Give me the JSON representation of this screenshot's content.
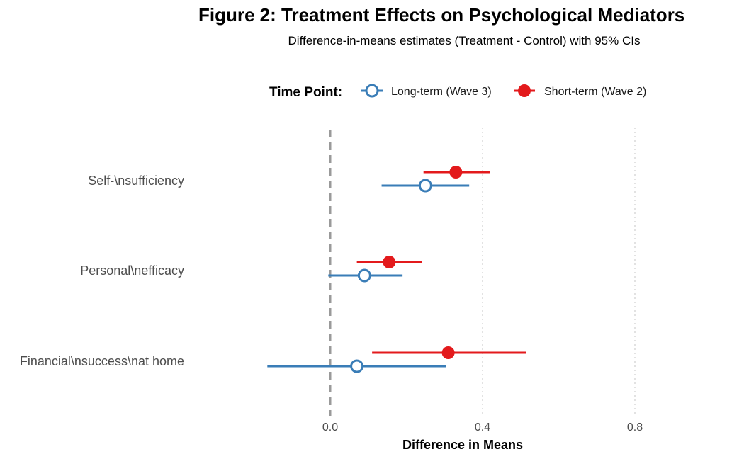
{
  "title": "Figure 2: Treatment Effects on Psychological Mediators",
  "subtitle": "Difference-in-means estimates (Treatment - Control) with 95% CIs",
  "legend": {
    "title": "Time Point:",
    "entries": [
      {
        "name": "Long-term (Wave 3)",
        "color": "#3A7DB7",
        "marker": "open-circle"
      },
      {
        "name": "Short-term (Wave 2)",
        "color": "#E31A1C",
        "marker": "filled-circle"
      }
    ]
  },
  "chart_data": {
    "type": "scatter",
    "orientation": "horizontal-forest",
    "title": "Figure 2: Treatment Effects on Psychological Mediators",
    "subtitle": "Difference-in-means estimates (Treatment - Control) with 95% CIs",
    "xlabel": "Difference in Means",
    "ylabel": "",
    "xlim": [
      -0.17,
      0.86
    ],
    "xticks": [
      0.0,
      0.4,
      0.8
    ],
    "xtick_labels": [
      "0.0",
      "0.4",
      "0.8"
    ],
    "reference_line": 0,
    "grid": "vertical-dotted",
    "legend_position": "top",
    "categories": [
      "Self-\\nsufficiency",
      "Personal\\nefficacy",
      "Financial\\nsuccess\\nat home"
    ],
    "series": [
      {
        "name": "Long-term (Wave 3)",
        "color": "#3A7DB7",
        "marker": "open-circle",
        "estimates": [
          0.25,
          0.09,
          0.07
        ],
        "ci_low": [
          0.135,
          -0.005,
          -0.165
        ],
        "ci_high": [
          0.365,
          0.19,
          0.305
        ]
      },
      {
        "name": "Short-term (Wave 2)",
        "color": "#E31A1C",
        "marker": "filled-circle",
        "estimates": [
          0.33,
          0.155,
          0.31
        ],
        "ci_low": [
          0.245,
          0.07,
          0.11
        ],
        "ci_high": [
          0.42,
          0.24,
          0.515
        ]
      }
    ]
  }
}
